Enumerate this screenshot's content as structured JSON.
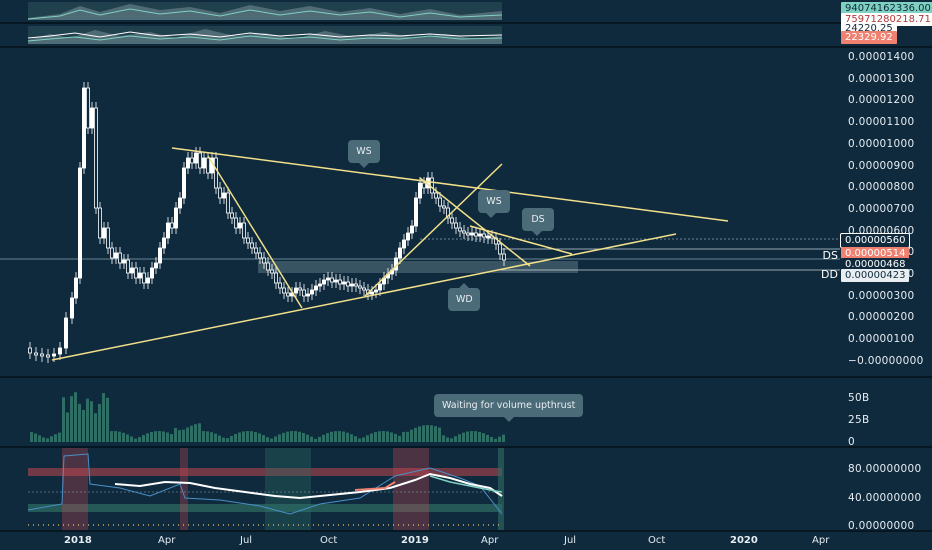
{
  "top_indicators": {
    "tag1": "94074162336.00",
    "tag2": "75971280218.71",
    "tag3": "24220.25",
    "tag4": "22329.92"
  },
  "price_axis": {
    "ticks": [
      "0.00001400",
      "0.00001300",
      "0.00001200",
      "0.00001100",
      "0.00001000",
      "0.00000900",
      "0.00000800",
      "0.00000700",
      "0.00000600",
      "0.00000500",
      "0.00000400",
      "0.00000300",
      "0.00000200",
      "0.00000100",
      "−0.00000000"
    ],
    "labels": [
      {
        "text": "0.00000560",
        "color": "#ffffff",
        "bg": "#0f2a3d",
        "border": "#ffffff"
      },
      {
        "text": "0.00000514",
        "color": "#ffffff",
        "bg": "#f0806f"
      },
      {
        "text": "0.00000468",
        "color": "#ffffff",
        "bg": "#0f2a3d"
      },
      {
        "text": "0.00000423",
        "color": "#0f2a3d",
        "bg": "#e8eef1"
      }
    ]
  },
  "level_labels": {
    "ds": "DS",
    "dd": "DD"
  },
  "annotations": {
    "ws1": "WS",
    "ws2": "WS",
    "ds": "DS",
    "wd": "WD",
    "volume_note": "Waiting for volume upthrust"
  },
  "volume_axis": {
    "ticks": [
      "50B",
      "25B",
      "0"
    ]
  },
  "oscillator_axis": {
    "ticks": [
      "80.00000000",
      "40.00000000",
      "0.00000000"
    ]
  },
  "time_axis": [
    "2018",
    "Apr",
    "Jul",
    "Oct",
    "2019",
    "Apr",
    "Jul",
    "Oct",
    "2020",
    "Apr"
  ],
  "colors": {
    "background": "#0f2a3d",
    "trendline": "#f2e08a",
    "red_zone": "#c0454f",
    "green_zone": "#2e6e64"
  }
}
